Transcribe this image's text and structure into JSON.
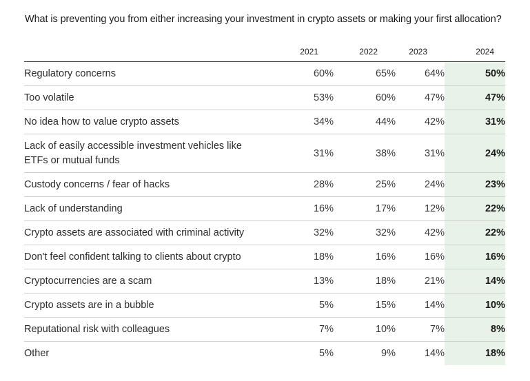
{
  "title": "What is preventing you from either increasing your investment in crypto assets or making your first allocation?",
  "colors": {
    "highlight_column": "#e8f2e8",
    "header_rule": "#3a3a3a",
    "row_rule": "#cfcfcf"
  },
  "chart_data": {
    "type": "table",
    "title": "What is preventing you from either increasing your investment in crypto assets or making your first allocation?",
    "columns": [
      "2021",
      "2022",
      "2023",
      "2024"
    ],
    "highlighted_column": "2024",
    "rows": [
      {
        "label": "Regulatory concerns",
        "values": [
          "60%",
          "65%",
          "64%",
          "50%"
        ]
      },
      {
        "label": "Too volatile",
        "values": [
          "53%",
          "60%",
          "47%",
          "47%"
        ]
      },
      {
        "label": "No idea how to value crypto assets",
        "values": [
          "34%",
          "44%",
          "42%",
          "31%"
        ]
      },
      {
        "label": "Lack of easily accessible investment vehicles like ETFs or mutual funds",
        "values": [
          "31%",
          "38%",
          "31%",
          "24%"
        ]
      },
      {
        "label": "Custody concerns / fear of hacks",
        "values": [
          "28%",
          "25%",
          "24%",
          "23%"
        ]
      },
      {
        "label": "Lack of understanding",
        "values": [
          "16%",
          "17%",
          "12%",
          "22%"
        ]
      },
      {
        "label": "Crypto assets are associated with criminal activity",
        "values": [
          "32%",
          "32%",
          "42%",
          "22%"
        ]
      },
      {
        "label": "Don't feel confident talking to clients about crypto",
        "values": [
          "18%",
          "16%",
          "16%",
          "16%"
        ]
      },
      {
        "label": "Cryptocurrencies are a scam",
        "values": [
          "13%",
          "18%",
          "21%",
          "14%"
        ]
      },
      {
        "label": "Crypto assets are in a bubble",
        "values": [
          "5%",
          "15%",
          "14%",
          "10%"
        ]
      },
      {
        "label": "Reputational risk with colleagues",
        "values": [
          "7%",
          "10%",
          "7%",
          "8%"
        ]
      },
      {
        "label": "Other",
        "values": [
          "5%",
          "9%",
          "14%",
          "18%"
        ]
      }
    ]
  }
}
